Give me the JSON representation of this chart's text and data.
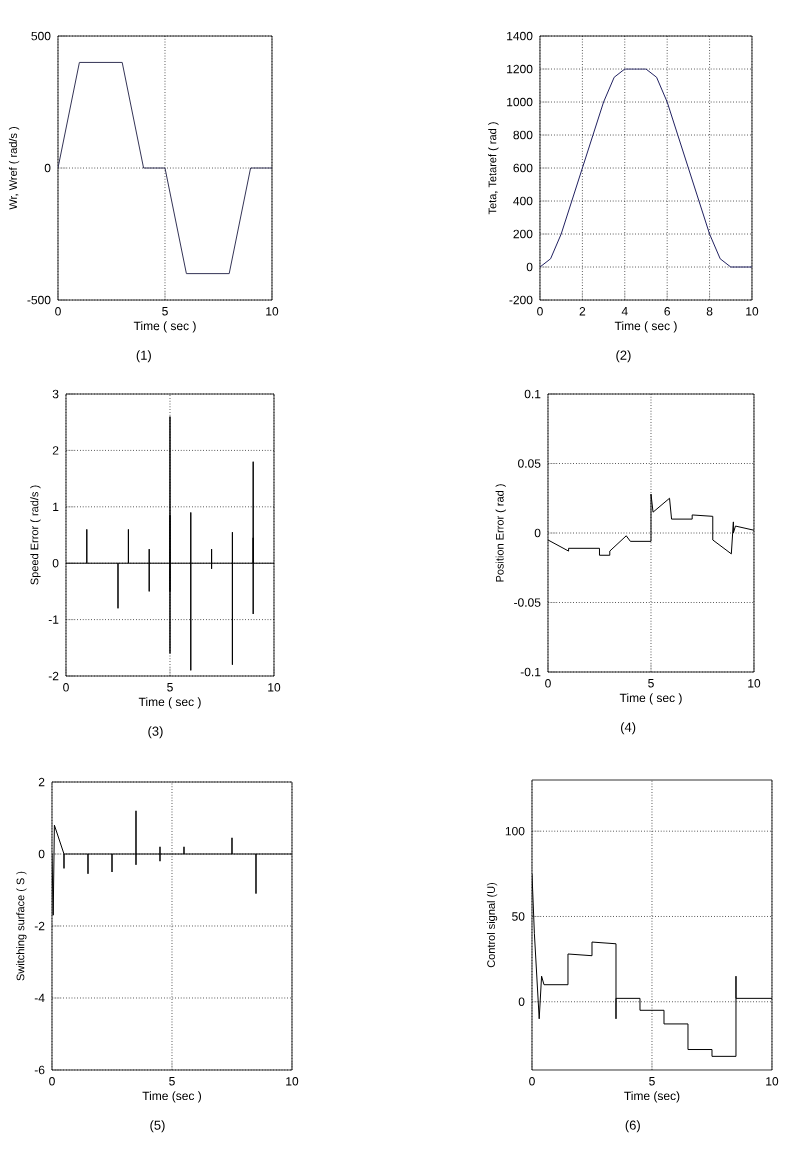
{
  "chart_data": [
    {
      "type": "line",
      "xlabel": "Time ( sec )",
      "ylabel": "Wr, Wref ( rad/s )",
      "annotations": [
        "(1)"
      ],
      "xlim": [
        0,
        10
      ],
      "ylim": [
        -500,
        500
      ],
      "xticks": [
        0,
        5,
        10
      ],
      "yticks": [
        -500,
        0,
        500
      ],
      "grid": true,
      "series": [
        {
          "color": "#333355",
          "x": [
            0,
            1,
            3,
            4,
            5,
            6,
            8,
            9,
            10
          ],
          "values": [
            0,
            400,
            400,
            0,
            0,
            -400,
            -400,
            0,
            0
          ]
        }
      ]
    },
    {
      "type": "line",
      "xlabel": "Time ( sec )",
      "ylabel": "Teta, Tetaref ( rad )",
      "annotations": [
        "(2)"
      ],
      "xlim": [
        0,
        10
      ],
      "ylim": [
        -200,
        1400
      ],
      "xticks": [
        0,
        2,
        4,
        6,
        8,
        10
      ],
      "yticks": [
        -200,
        0,
        200,
        400,
        600,
        800,
        1000,
        1200,
        1400
      ],
      "grid": true,
      "series": [
        {
          "color": "#202060",
          "x": [
            0,
            0.5,
            1,
            1.5,
            2,
            2.5,
            3,
            3.5,
            4,
            5,
            5.5,
            6,
            6.5,
            7,
            7.5,
            8,
            8.5,
            9,
            10
          ],
          "values": [
            0,
            50,
            200,
            400,
            600,
            800,
            1000,
            1150,
            1200,
            1200,
            1150,
            1000,
            800,
            600,
            400,
            200,
            50,
            0,
            0
          ]
        }
      ]
    },
    {
      "type": "line",
      "xlabel": "Time ( sec )",
      "ylabel": "Speed Error ( rad/s )",
      "annotations": [
        "(3)"
      ],
      "xlim": [
        0,
        10
      ],
      "ylim": [
        -2,
        3
      ],
      "xticks": [
        0,
        5,
        10
      ],
      "yticks": [
        -2,
        -1,
        0,
        1,
        2,
        3
      ],
      "grid": true,
      "series": [
        {
          "color": "#000000",
          "x": [
            0,
            1,
            1,
            1,
            2.5,
            2.5,
            2.5,
            3,
            3,
            3,
            4,
            4,
            4,
            4,
            5,
            5,
            5,
            5,
            5,
            5,
            6,
            6,
            6,
            6,
            7,
            7,
            7,
            7,
            8,
            8,
            8,
            8,
            9,
            9,
            9,
            9,
            9,
            10
          ],
          "values": [
            0,
            0,
            0.6,
            0,
            0,
            -0.8,
            0,
            0,
            0.6,
            0,
            0,
            0.25,
            -0.5,
            0,
            0,
            2.6,
            -1.6,
            0.85,
            -0.5,
            0,
            0,
            0.9,
            -1.9,
            0,
            0,
            0.25,
            -0.1,
            0,
            0,
            0.55,
            -1.8,
            0,
            0,
            1.8,
            -0.9,
            0.45,
            0,
            0
          ]
        }
      ]
    },
    {
      "type": "line",
      "xlabel": "Time ( sec )",
      "ylabel": "Position Error ( rad )",
      "annotations": [
        "(4)"
      ],
      "xlim": [
        0,
        10
      ],
      "ylim": [
        -0.1,
        0.1
      ],
      "xticks": [
        0,
        5,
        10
      ],
      "yticks": [
        -0.1,
        -0.05,
        0,
        0.05,
        0.1
      ],
      "grid": true,
      "series": [
        {
          "color": "#000000",
          "x": [
            0,
            1,
            1,
            2.5,
            2.5,
            3,
            3,
            3.8,
            4,
            5,
            5,
            5,
            5.1,
            5.9,
            6,
            7,
            7,
            8,
            8,
            8.9,
            9,
            9,
            9.1,
            10
          ],
          "values": [
            -0.005,
            -0.013,
            -0.011,
            -0.011,
            -0.016,
            -0.016,
            -0.013,
            -0.002,
            -0.006,
            -0.006,
            0.015,
            0.028,
            0.015,
            0.025,
            0.01,
            0.01,
            0.013,
            0.012,
            -0.005,
            -0.015,
            0.008,
            0,
            0.005,
            0.002
          ]
        }
      ]
    },
    {
      "type": "line",
      "xlabel": "Time (sec )",
      "ylabel": "Switching surface ( S )",
      "annotations": [
        "(5)"
      ],
      "xlim": [
        0,
        10
      ],
      "ylim": [
        -6,
        2
      ],
      "xticks": [
        0,
        5,
        10
      ],
      "yticks": [
        -6,
        -4,
        -2,
        0,
        2
      ],
      "grid": true,
      "series": [
        {
          "color": "#000000",
          "x": [
            0,
            0.05,
            0.1,
            0.5,
            0.5,
            0.5,
            1.5,
            1.5,
            1.5,
            2.5,
            2.5,
            2.5,
            3.5,
            3.5,
            3.5,
            3.5,
            4.5,
            4.5,
            4.5,
            4.5,
            5.5,
            5.5,
            5.5,
            7.5,
            7.5,
            7.5,
            8.5,
            8.5,
            8.5,
            10
          ],
          "values": [
            0,
            -1.7,
            0.8,
            0,
            -0.4,
            0,
            0,
            -0.55,
            0,
            0,
            -0.5,
            0,
            0,
            1.2,
            -0.3,
            0,
            0,
            0.2,
            -0.2,
            0,
            0,
            0.2,
            0,
            0,
            0.45,
            0,
            0,
            -1.1,
            0,
            0
          ]
        }
      ]
    },
    {
      "type": "line",
      "xlabel": "Time (sec)",
      "ylabel": "Control signal (U)",
      "annotations": [
        "(6)"
      ],
      "xlim": [
        0,
        10
      ],
      "ylim": [
        -40,
        130
      ],
      "xticks": [
        0,
        5,
        10
      ],
      "yticks": [
        0,
        50,
        100
      ],
      "grid": true,
      "series": [
        {
          "color": "#000000",
          "x": [
            0,
            0.1,
            0.3,
            0.4,
            0.5,
            1.5,
            1.5,
            2.5,
            2.5,
            3.5,
            3.5,
            3.5,
            4.5,
            4.5,
            5.5,
            5.5,
            6.5,
            6.5,
            7.5,
            7.5,
            8.5,
            8.5,
            8.5,
            10
          ],
          "values": [
            75,
            40,
            -10,
            15,
            10,
            10,
            28,
            27,
            35,
            34,
            -10,
            2,
            2,
            -5,
            -5,
            -13,
            -13,
            -28,
            -28,
            -32,
            -32,
            15,
            2,
            2
          ]
        }
      ]
    }
  ]
}
